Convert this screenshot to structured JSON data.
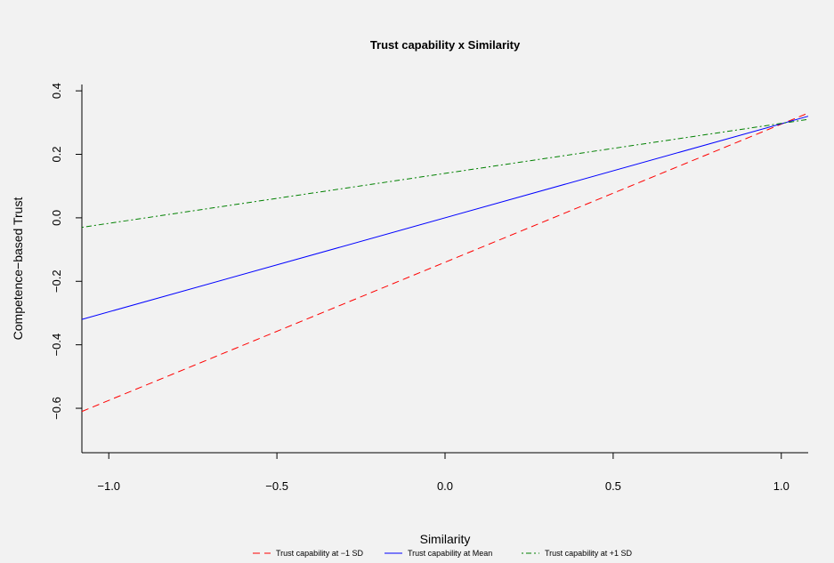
{
  "chart_data": {
    "type": "line",
    "title": "Trust capability x Similarity",
    "xlabel": "Similarity",
    "ylabel": "Competence−based Trust",
    "xlim": [
      -1.08,
      1.08
    ],
    "ylim": [
      -0.74,
      0.42
    ],
    "x_ticks": [
      -1.0,
      -0.5,
      0.0,
      0.5,
      1.0
    ],
    "x_tick_labels": [
      "−1.0",
      "−0.5",
      "0.0",
      "0.5",
      "1.0"
    ],
    "y_ticks": [
      -0.6,
      -0.4,
      -0.2,
      0.0,
      0.2,
      0.4
    ],
    "y_tick_labels": [
      "−0.6",
      "−0.4",
      "−0.2",
      "0.0",
      "0.2",
      "0.4"
    ],
    "grid": false,
    "legend_position": "bottom",
    "series": [
      {
        "name": "Trust capability at −1 SD",
        "color": "#ff0000",
        "dash": "dashed",
        "x": [
          -1.08,
          1.08
        ],
        "y": [
          -0.61,
          0.33
        ]
      },
      {
        "name": "Trust capability at Mean",
        "color": "#0000ff",
        "dash": "solid",
        "x": [
          -1.08,
          1.08
        ],
        "y": [
          -0.32,
          0.32
        ]
      },
      {
        "name": "Trust capability at +1 SD",
        "color": "#008000",
        "dash": "dotdash",
        "x": [
          -1.08,
          1.08
        ],
        "y": [
          -0.03,
          0.31
        ]
      }
    ]
  }
}
